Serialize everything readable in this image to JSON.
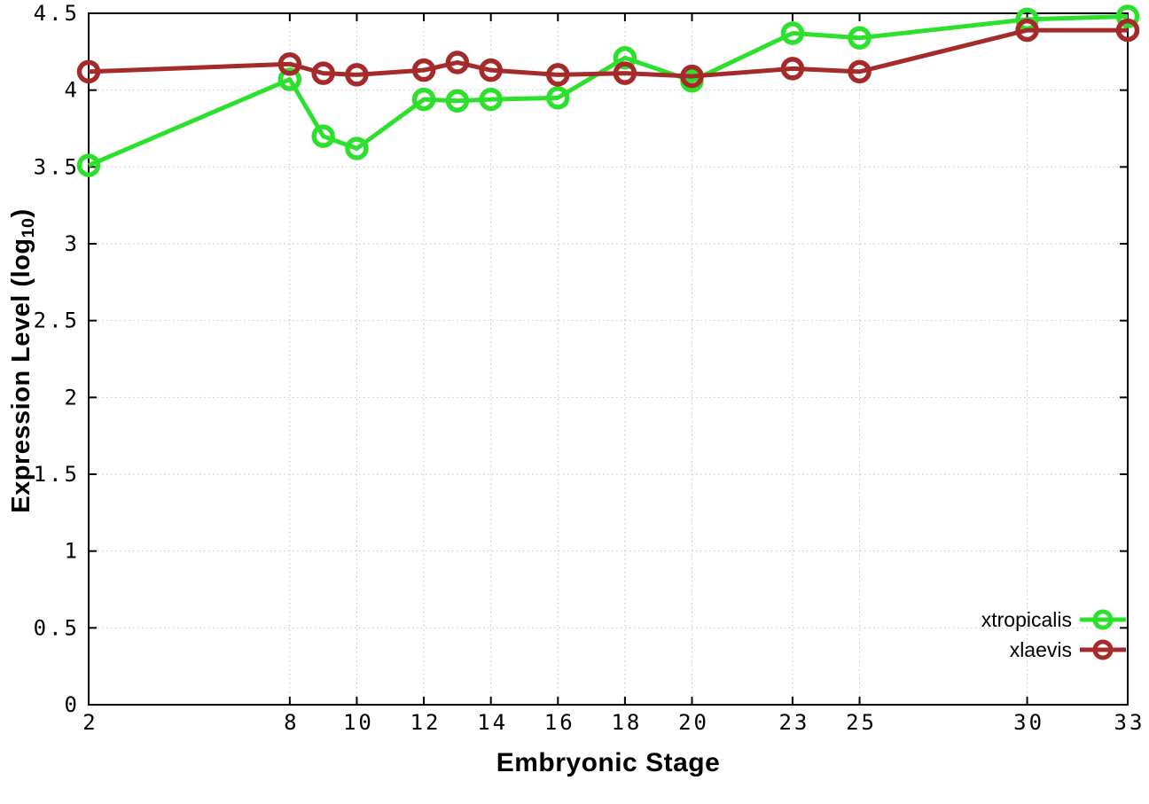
{
  "figure": {
    "background": "#ffffff",
    "border_color": "#000000",
    "grid_color": "#c2c2c2",
    "text_color": "#000000"
  },
  "axes": {
    "x_title": "Embryonic Stage",
    "y_title_prefix": "Expression Level (log",
    "y_title_sub": "10",
    "y_title_suffix": ")"
  },
  "chart_data": {
    "type": "line",
    "title": "",
    "xlabel": "Embryonic Stage",
    "ylabel": "Expression Level (log10)",
    "x": [
      2,
      8,
      9,
      10,
      12,
      13,
      14,
      16,
      18,
      20,
      23,
      25,
      30,
      33
    ],
    "series": [
      {
        "name": "xtropicalis",
        "color": "#2ee02e",
        "values": [
          3.51,
          4.07,
          3.7,
          3.62,
          3.94,
          3.93,
          3.94,
          3.95,
          4.21,
          4.06,
          4.37,
          4.34,
          4.46,
          4.48
        ]
      },
      {
        "name": "xlaevis",
        "color": "#a52a2a",
        "values": [
          4.12,
          4.17,
          4.11,
          4.1,
          4.13,
          4.18,
          4.13,
          4.1,
          4.11,
          4.09,
          4.14,
          4.12,
          4.39,
          4.39
        ]
      }
    ],
    "x_tick_values": [
      2,
      8,
      10,
      12,
      14,
      16,
      18,
      20,
      23,
      25,
      30,
      33
    ],
    "x_tick_labels": [
      "2",
      "8",
      "10",
      "12",
      "14",
      "16",
      "18",
      "20",
      "23",
      "25",
      "30",
      "33"
    ],
    "y_tick_values": [
      0,
      0.5,
      1,
      1.5,
      2,
      2.5,
      3,
      3.5,
      4,
      4.5
    ],
    "y_tick_labels": [
      "0",
      "0.5",
      "1",
      "1.5",
      "2",
      "2.5",
      "3",
      "3.5",
      "4",
      "4.5"
    ],
    "xlim": [
      2,
      33
    ],
    "ylim": [
      0,
      4.5
    ],
    "grid": true,
    "legend_position": "bottom-right",
    "marker": "open-circle",
    "line_width": 5,
    "marker_radius": 10.5,
    "marker_stroke": 5.5
  }
}
